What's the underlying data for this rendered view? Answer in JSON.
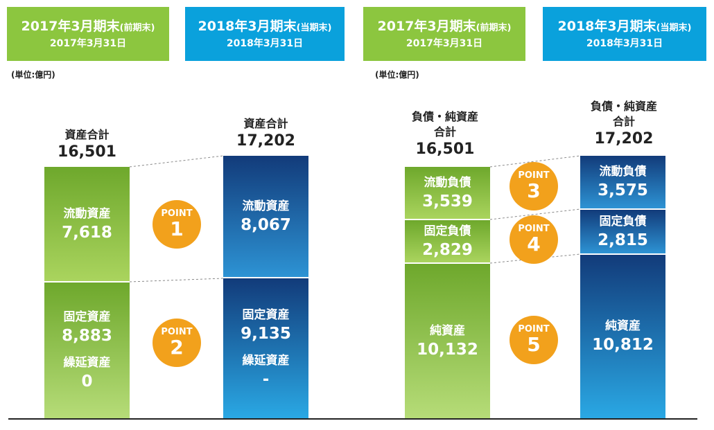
{
  "headers": [
    {
      "period": "2017年3月期末",
      "note": "(前期末)",
      "date": "2017年3月31日",
      "color": "#8cc63f"
    },
    {
      "period": "2018年3月期末",
      "note": "(当期末)",
      "date": "2018年3月31日",
      "color": "#0aa1dc"
    },
    {
      "period": "2017年3月期末",
      "note": "(前期末)",
      "date": "2017年3月31日",
      "color": "#8cc63f"
    },
    {
      "period": "2018年3月期末",
      "note": "(当期末)",
      "date": "2018年3月31日",
      "color": "#0aa1dc"
    }
  ],
  "unit": "(単位:億円)",
  "point_word": "POINT",
  "chart_data": [
    {
      "type": "bar",
      "stacked": true,
      "categories": [
        "2017年3月期末",
        "2018年3月期末"
      ],
      "totals": {
        "label": "資産合計",
        "values": [
          "16,501",
          "17,202"
        ]
      },
      "series": [
        {
          "name": "流動資産",
          "values": [
            7618,
            8067
          ],
          "labels": [
            "7,618",
            "8,067"
          ]
        },
        {
          "name": "固定資産",
          "values": [
            8883,
            9135
          ],
          "labels": [
            "8,883",
            "9,135"
          ]
        },
        {
          "name": "繰延資産",
          "values": [
            0,
            null
          ],
          "labels": [
            "0",
            "-"
          ]
        }
      ],
      "points": [
        "1",
        "2"
      ]
    },
    {
      "type": "bar",
      "stacked": true,
      "categories": [
        "2017年3月期末",
        "2018年3月期末"
      ],
      "totals": {
        "label_line1": "負債・純資産",
        "label_line2": "合計",
        "values": [
          "16,501",
          "17,202"
        ]
      },
      "series": [
        {
          "name": "流動負債",
          "values": [
            3539,
            3575
          ],
          "labels": [
            "3,539",
            "3,575"
          ]
        },
        {
          "name": "固定負債",
          "values": [
            2829,
            2815
          ],
          "labels": [
            "2,829",
            "2,815"
          ]
        },
        {
          "name": "純資産",
          "values": [
            10132,
            10812
          ],
          "labels": [
            "10,132",
            "10,812"
          ]
        }
      ],
      "points": [
        "3",
        "4",
        "5"
      ]
    }
  ]
}
